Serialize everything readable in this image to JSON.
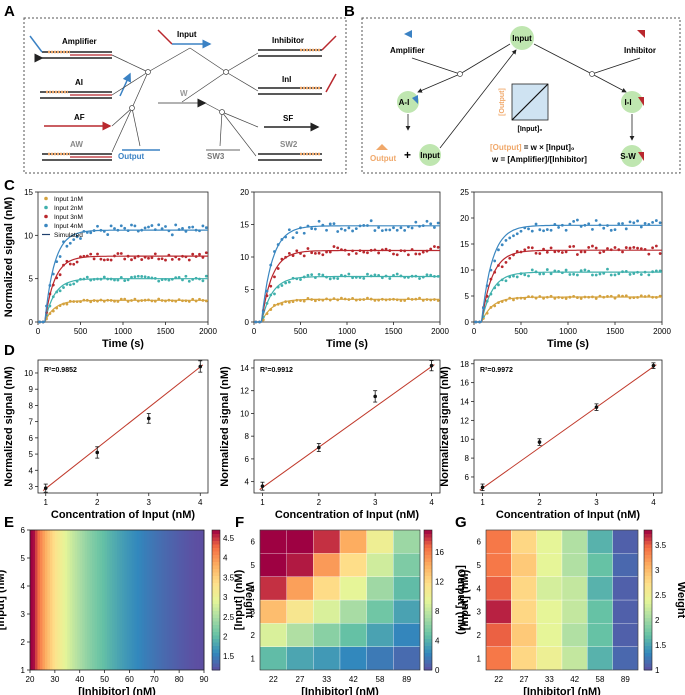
{
  "panels": {
    "A": "A",
    "B": "B",
    "C": "C",
    "D": "D",
    "E": "E",
    "F": "F",
    "G": "G"
  },
  "panelA": {
    "amplifier": "Amplifier",
    "input": "Input",
    "inhibitor": "Inhibitor",
    "ai": "AI",
    "w": "W",
    "ini": "InI",
    "af": "AF",
    "sf": "SF",
    "aw": "AW",
    "output": "Output",
    "sw3": "SW3",
    "sw2": "SW2"
  },
  "panelB": {
    "input_top": "Input",
    "amplifier": "Amplifier",
    "inhibitor": "Inhibitor",
    "ai": "A-I",
    "ii": "I-I",
    "sw": "S-W",
    "output": "Output",
    "plus": "+",
    "input_bottom": "Input",
    "axis_y": "[Output]",
    "axis_x": "[Input]₀",
    "eq1_left": "[Output]",
    "eq1_right": " = w × [Input]₀",
    "eq2": "w = [Amplifier]/[Inhibitor]"
  },
  "colors": {
    "input1": "#d4a23e",
    "input2": "#3fb0ac",
    "input3": "#b9282e",
    "input4": "#3b87c0",
    "sim": "#1f3f6e"
  },
  "chart_data": [
    {
      "type": "line",
      "panel": "C1",
      "xlabel": "Time (s)",
      "ylabel": "Normalized signal (nM)",
      "xlim": [
        0,
        2000
      ],
      "ylim": [
        0,
        15
      ],
      "xticks": [
        0,
        500,
        1000,
        1500,
        2000
      ],
      "yticks": [
        0,
        5,
        10,
        15
      ],
      "legend": {
        "placement": "top-left",
        "entries": [
          "Input 1nM",
          "Input 2nM",
          "Input 3nM",
          "Input 4nM",
          "Simulated"
        ]
      },
      "series": [
        {
          "name": "Input 1nM",
          "plateau": 2.5
        },
        {
          "name": "Input 2nM",
          "plateau": 5.0
        },
        {
          "name": "Input 3nM",
          "plateau": 7.6
        },
        {
          "name": "Input 4nM",
          "plateau": 10.6
        }
      ]
    },
    {
      "type": "line",
      "panel": "C2",
      "xlabel": "Time (s)",
      "ylabel": "",
      "xlim": [
        0,
        2000
      ],
      "ylim": [
        0,
        20
      ],
      "xticks": [
        0,
        500,
        1000,
        1500,
        2000
      ],
      "yticks": [
        0,
        5,
        10,
        15,
        20
      ],
      "series": [
        {
          "name": "Input 1nM",
          "plateau": 3.5
        },
        {
          "name": "Input 2nM",
          "plateau": 7.0
        },
        {
          "name": "Input 3nM",
          "plateau": 11.0
        },
        {
          "name": "Input 4nM",
          "plateau": 14.8
        }
      ]
    },
    {
      "type": "line",
      "panel": "C3",
      "xlabel": "Time (s)",
      "ylabel": "",
      "xlim": [
        0,
        2000
      ],
      "ylim": [
        0,
        25
      ],
      "xticks": [
        0,
        500,
        1000,
        1500,
        2000
      ],
      "yticks": [
        0,
        5,
        10,
        15,
        20,
        25
      ],
      "series": [
        {
          "name": "Input 1nM",
          "plateau": 4.8
        },
        {
          "name": "Input 2nM",
          "plateau": 9.6
        },
        {
          "name": "Input 3nM",
          "plateau": 13.8
        },
        {
          "name": "Input 4nM",
          "plateau": 18.6
        }
      ]
    },
    {
      "type": "scatter",
      "panel": "D1",
      "xlabel": "Concentration of Input (nM)",
      "ylabel": "Normalized signal (nM)",
      "annotation": "R²=0.9852",
      "xlim": [
        0.85,
        4.15
      ],
      "ylim": [
        2.6,
        10.8
      ],
      "xticks": [
        1,
        2,
        3,
        4
      ],
      "yticks": [
        3,
        4,
        5,
        6,
        7,
        8,
        9,
        10
      ],
      "x": [
        1,
        2,
        3,
        4
      ],
      "y": [
        2.9,
        5.1,
        7.2,
        10.4
      ],
      "err": [
        0.25,
        0.35,
        0.3,
        0.35
      ],
      "fit": [
        2.75,
        10.5
      ]
    },
    {
      "type": "scatter",
      "panel": "D2",
      "xlabel": "Concentration of Input (nM)",
      "ylabel": "Normalized signal (nM)",
      "annotation": "R²=0.9912",
      "xlim": [
        0.85,
        4.15
      ],
      "ylim": [
        3,
        14.7
      ],
      "xticks": [
        1,
        2,
        3,
        4
      ],
      "yticks": [
        4,
        6,
        8,
        10,
        12,
        14
      ],
      "x": [
        1,
        2,
        3,
        4
      ],
      "y": [
        3.6,
        7.0,
        11.5,
        14.2
      ],
      "err": [
        0.35,
        0.35,
        0.5,
        0.45
      ],
      "fit": [
        3.3,
        14.3
      ]
    },
    {
      "type": "scatter",
      "panel": "D3",
      "xlabel": "Concentration of Input (nM)",
      "ylabel": "Normalized signal (nM)",
      "annotation": "R²=0.9972",
      "xlim": [
        0.85,
        4.15
      ],
      "ylim": [
        4.3,
        18.4
      ],
      "xticks": [
        1,
        2,
        3,
        4
      ],
      "yticks": [
        6,
        8,
        10,
        12,
        14,
        16,
        18
      ],
      "x": [
        1,
        2,
        3,
        4
      ],
      "y": [
        4.9,
        9.7,
        13.4,
        17.8
      ],
      "err": [
        0.35,
        0.35,
        0.35,
        0.3
      ],
      "fit": [
        4.6,
        17.9
      ]
    },
    {
      "type": "heatmap",
      "panel": "E",
      "xlabel": "[Inhibitor] (nM)",
      "ylabel": "[Input] (nM)",
      "xlim": [
        20,
        90
      ],
      "ylim": [
        1,
        6
      ],
      "xticks": [
        20,
        30,
        40,
        50,
        60,
        70,
        80,
        90
      ],
      "yticks": [
        1,
        2,
        3,
        4,
        5,
        6
      ],
      "colorbar": {
        "label": "Weight",
        "min": 1.15,
        "max": 4.7,
        "ticks": [
          1.5,
          2,
          2.5,
          3,
          3.5,
          4,
          4.5
        ]
      },
      "formula": "value = 100 / inhibitor"
    },
    {
      "type": "heatmap",
      "panel": "F",
      "xlabel": "[Inhibitor] (nM)",
      "ylabel": "[Input] (nM)",
      "categories_x": [
        "22",
        "27",
        "33",
        "42",
        "58",
        "89"
      ],
      "categories_y": [
        "1",
        "2",
        "3",
        "4",
        "5",
        "6"
      ],
      "colorbar": {
        "label": "[Output] (nM)",
        "min": 0,
        "max": 19,
        "ticks": [
          0,
          4,
          8,
          12,
          16
        ]
      },
      "values": [
        [
          4.5,
          3.5,
          3.0,
          2.3,
          1.7,
          1.1
        ],
        [
          9.0,
          7.4,
          6.0,
          4.7,
          3.4,
          2.2
        ],
        [
          13.5,
          11.1,
          9.0,
          7.1,
          5.1,
          3.4
        ],
        [
          18.0,
          14.8,
          12.0,
          9.5,
          6.8,
          4.5
        ],
        [
          22.5,
          18.5,
          15.0,
          11.9,
          8.6,
          5.6
        ],
        [
          27.0,
          22.2,
          18.0,
          14.3,
          10.3,
          6.7
        ]
      ]
    },
    {
      "type": "heatmap",
      "panel": "G",
      "xlabel": "[Inhibitor] (nM)",
      "ylabel": "[Input] (nM)",
      "categories_x": [
        "22",
        "27",
        "33",
        "42",
        "58",
        "89"
      ],
      "categories_y": [
        "1",
        "2",
        "3",
        "4",
        "5",
        "6"
      ],
      "colorbar": {
        "label": "Weight",
        "min": 1.0,
        "max": 3.8,
        "ticks": [
          1,
          1.5,
          2,
          2.5,
          3,
          3.5
        ]
      },
      "values": [
        [
          3.4,
          2.8,
          2.5,
          2.2,
          1.6,
          1.15
        ],
        [
          3.5,
          2.9,
          2.4,
          2.1,
          1.7,
          1.1
        ],
        [
          3.7,
          2.8,
          2.4,
          2.2,
          1.7,
          1.1
        ],
        [
          3.5,
          2.8,
          2.3,
          2.2,
          1.6,
          1.1
        ],
        [
          3.4,
          2.9,
          2.4,
          2.1,
          1.7,
          1.15
        ],
        [
          3.4,
          2.8,
          2.4,
          2.1,
          1.6,
          1.1
        ]
      ]
    }
  ]
}
